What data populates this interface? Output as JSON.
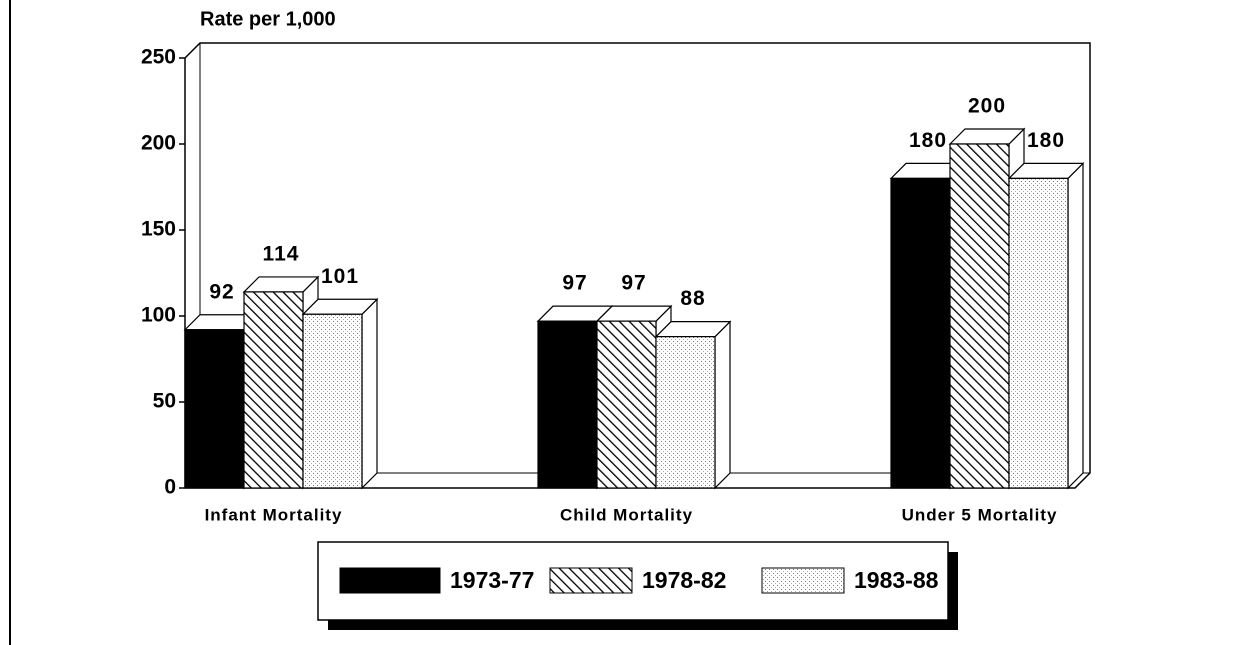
{
  "chart_data": {
    "type": "bar3d",
    "y_axis_label": "Rate per 1,000",
    "categories": [
      "Infant Mortality",
      "Child Mortality",
      "Under 5 Mortality"
    ],
    "series": [
      {
        "name": "1973-77",
        "color": "#000000",
        "pattern": "solid",
        "values": [
          92,
          97,
          180
        ]
      },
      {
        "name": "1978-82",
        "color": "#000000",
        "pattern": "hatch",
        "values": [
          114,
          97,
          200
        ]
      },
      {
        "name": "1983-88",
        "color": "#000000",
        "pattern": "dots",
        "values": [
          101,
          88,
          180
        ]
      }
    ],
    "ylim": [
      0,
      250
    ],
    "yticks": [
      0,
      50,
      100,
      150,
      200,
      250
    ]
  }
}
